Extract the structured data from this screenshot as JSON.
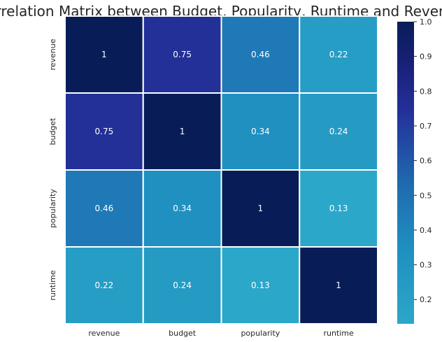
{
  "chart_data": {
    "type": "heatmap",
    "title": "Correlation Matrix between Budget, Popularity, Runtime and Revenue",
    "xlabel": "",
    "ylabel": "",
    "x_categories": [
      "revenue",
      "budget",
      "popularity",
      "runtime"
    ],
    "y_categories": [
      "revenue",
      "budget",
      "popularity",
      "runtime"
    ],
    "values": [
      [
        1,
        0.75,
        0.46,
        0.22
      ],
      [
        0.75,
        1,
        0.34,
        0.24
      ],
      [
        0.46,
        0.34,
        1,
        0.13
      ],
      [
        0.22,
        0.24,
        0.13,
        1
      ]
    ],
    "cell_labels": [
      [
        "1",
        "0.75",
        "0.46",
        "0.22"
      ],
      [
        "0.75",
        "1",
        "0.34",
        "0.24"
      ],
      [
        "0.46",
        "0.34",
        "1",
        "0.13"
      ],
      [
        "0.22",
        "0.24",
        "0.13",
        "1"
      ]
    ],
    "colormap": "YlGnBu",
    "color_range": [
      0.13,
      1
    ],
    "colorbar_ticks": [
      "0.2",
      "0.3",
      "0.4",
      "0.5",
      "0.6",
      "0.7",
      "0.8",
      "0.9",
      "1.0"
    ],
    "colorbar_tick_values": [
      0.2,
      0.3,
      0.4,
      0.5,
      0.6,
      0.7,
      0.8,
      0.9,
      1.0
    ],
    "colors": {
      "low": "#2ba7c9",
      "mid": "#1f6db0",
      "high": "#081d58",
      "cell_border": "#ffffff",
      "text": "#262626"
    }
  }
}
